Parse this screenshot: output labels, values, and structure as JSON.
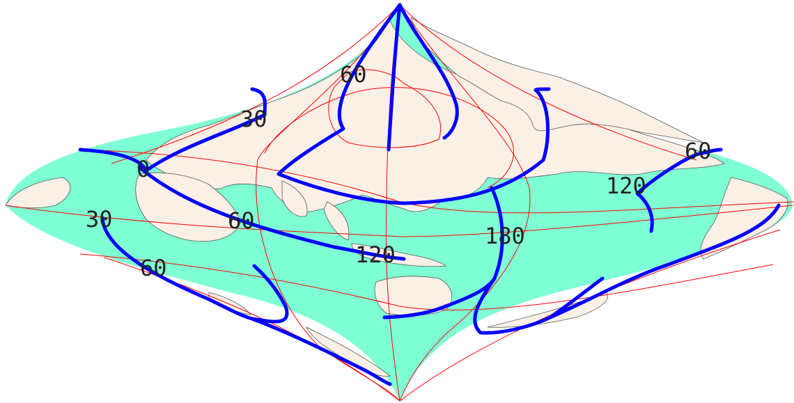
{
  "colors": {
    "ocean": "#7fffd4",
    "land": "#faf0e6",
    "coast": "#555555",
    "graticule": "#ff0000",
    "overlay": "#0000ff"
  },
  "labels": {
    "lat_n30": "30",
    "lat_n60": "60",
    "lat_0": "0",
    "lat_s30": "30",
    "lat_s60": "60",
    "lon_60": "60",
    "lon_120": "120",
    "lon_180": "180",
    "lon_e120": "120",
    "lon_e60": "60"
  }
}
